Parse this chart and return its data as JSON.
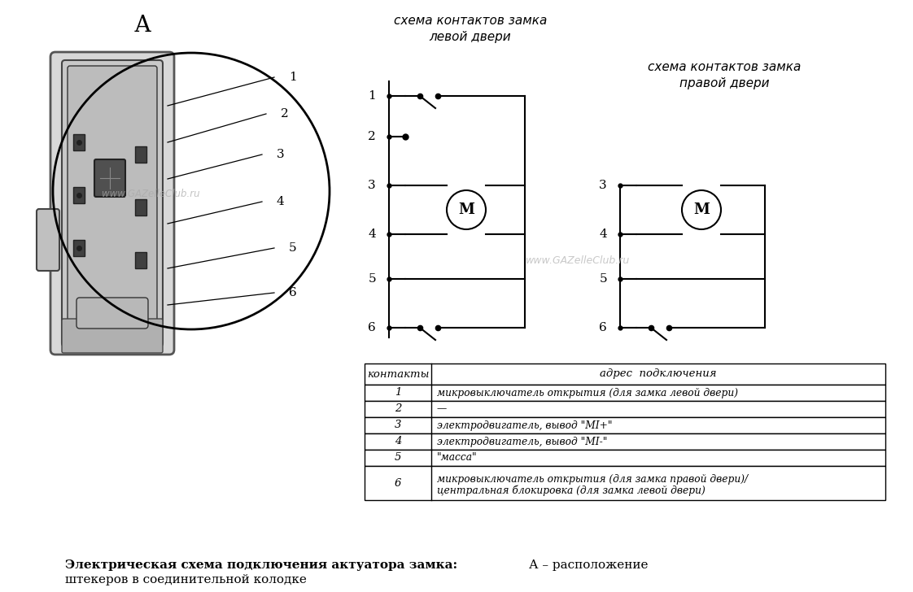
{
  "bg_color": "#ffffff",
  "title_A": "А",
  "left_schema_title": "схема контактов замка\nлевой двери",
  "right_schema_title": "схема контактов замка\nправой двери",
  "watermark1": "www.GAZelleClub.ru",
  "watermark2": "www.GAZelleClub.ru",
  "caption_bold": "Электрическая схема подключения актуатора замка:",
  "caption_normal": " А – расположение штекеров в соединительной колодке",
  "caption_line2": "штекеров в соединительной колодке",
  "table_header": [
    "контакты",
    "адрес  подключения"
  ],
  "table_rows": [
    [
      "1",
      "микровыключатель открытия (для замка левой двери)"
    ],
    [
      "2",
      "—"
    ],
    [
      "3",
      "электродвигатель, вывод \"MI+\""
    ],
    [
      "4",
      "электродвигатель, вывод \"MI-\""
    ],
    [
      "5",
      "\"масса\""
    ],
    [
      "6",
      "микровыключатель открытия (для замка правой двери)/\nцентральная блокировка (для замка левой двери)"
    ]
  ],
  "pin_labels": [
    "1",
    "2",
    "3",
    "4",
    "5",
    "6"
  ]
}
